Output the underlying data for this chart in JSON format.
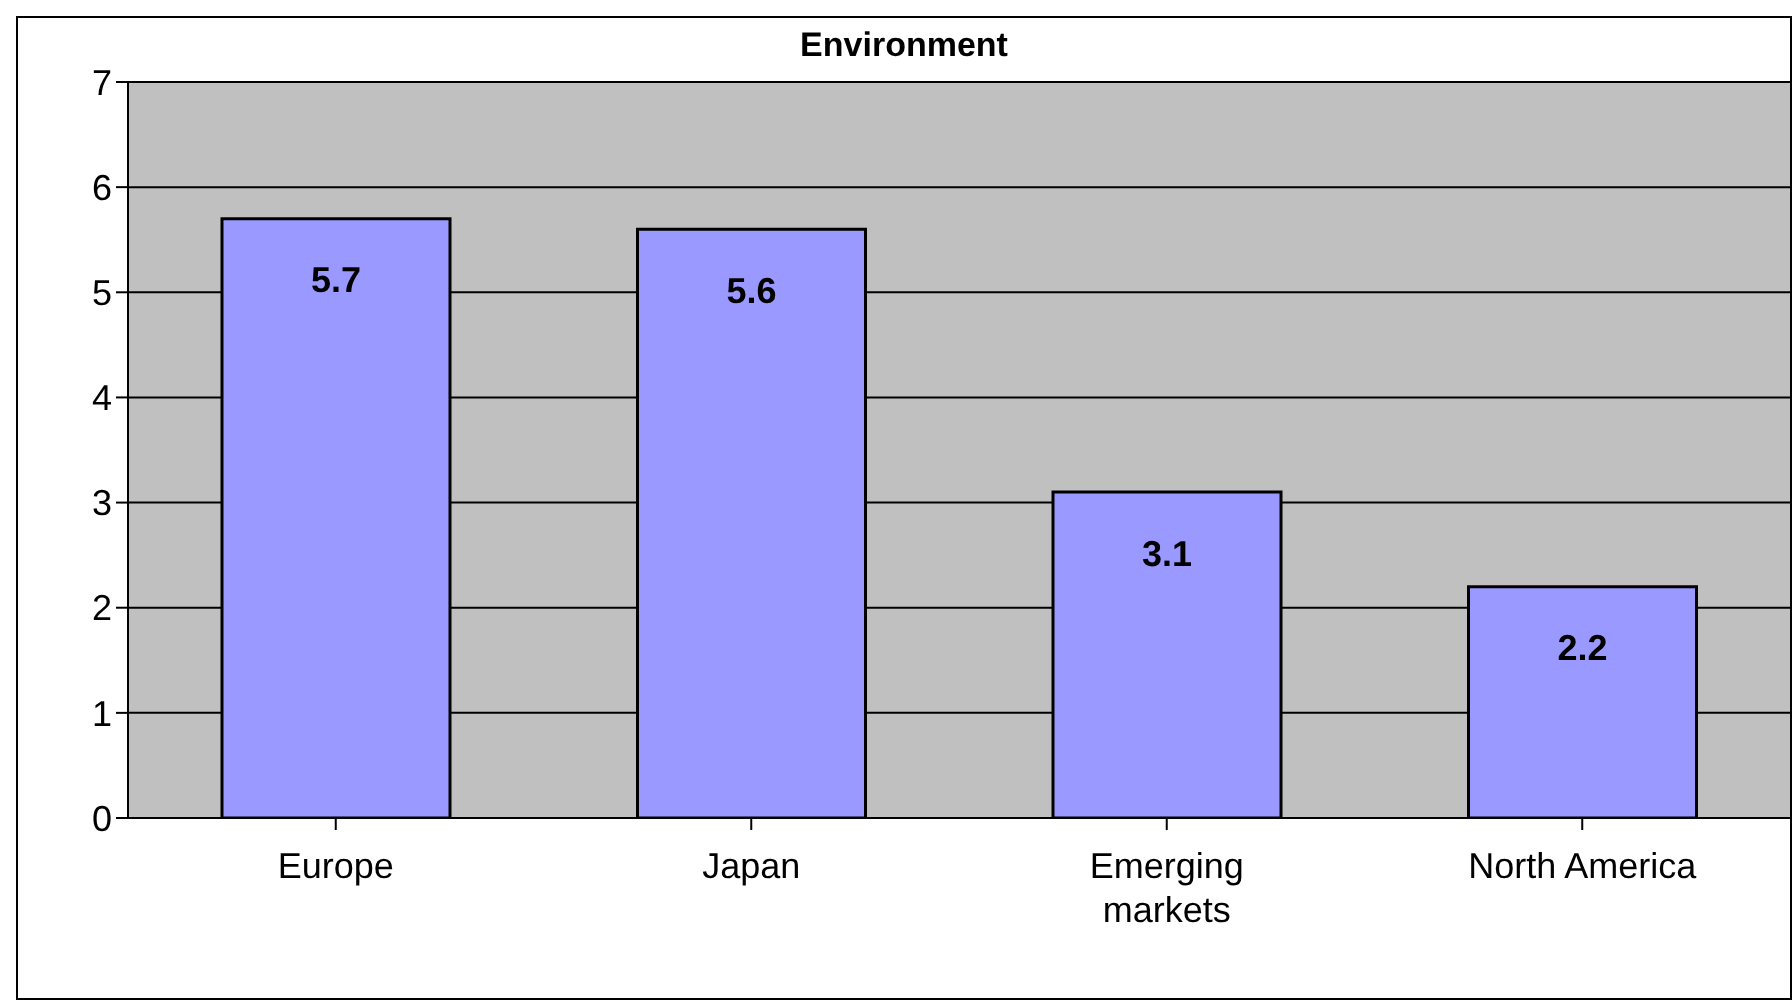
{
  "chart_data": {
    "type": "bar",
    "title": "Environment",
    "categories": [
      "Europe",
      "Japan",
      "Emerging markets",
      "North America"
    ],
    "values": [
      5.7,
      5.6,
      3.1,
      2.2
    ],
    "color": "#9999ff",
    "ylim": [
      0,
      7
    ],
    "yticks": [
      0,
      1,
      2,
      3,
      4,
      5,
      6,
      7
    ],
    "grid": "y",
    "data_labels": true,
    "legend": false
  }
}
